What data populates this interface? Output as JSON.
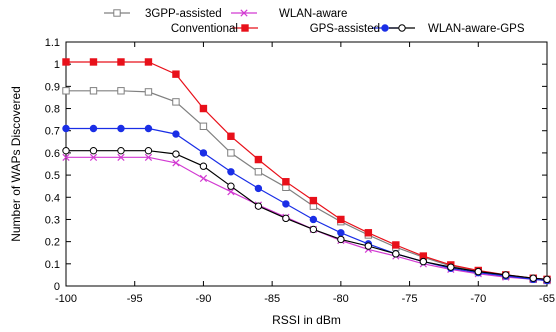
{
  "chart_data": {
    "type": "line",
    "title": "",
    "xlabel": "RSSI in dBm",
    "ylabel": "Number of WAPs Discovered",
    "xlim": [
      -100,
      -65
    ],
    "ylim": [
      0,
      1.1
    ],
    "xticks": [
      -100,
      -95,
      -90,
      -85,
      -80,
      -75,
      -70,
      -65
    ],
    "xtick_labels": [
      "-100",
      "-95",
      "-90",
      "-85",
      "-80",
      "-75",
      "-70",
      "-65"
    ],
    "yticks": [
      0,
      0.1,
      0.2,
      0.3,
      0.4,
      0.5,
      0.6,
      0.7,
      0.8,
      0.9,
      1,
      1.1
    ],
    "ytick_labels": [
      "0",
      "0.1",
      "0.2",
      "0.3",
      "0.4",
      "0.5",
      "0.6",
      "0.7",
      "0.8",
      "0.9",
      "1",
      "1.1"
    ],
    "grid": false,
    "legend_position": "top",
    "x": [
      -100,
      -98,
      -96,
      -94,
      -92,
      -90,
      -88,
      -86,
      -84,
      -82,
      -80,
      -78,
      -76,
      -74,
      -72,
      -70,
      -68,
      -66,
      -65
    ],
    "series": [
      {
        "name": "3GPP-assisted",
        "color": "#808080",
        "marker": "open-square",
        "values": [
          0.88,
          0.88,
          0.88,
          0.875,
          0.83,
          0.72,
          0.6,
          0.515,
          0.445,
          0.36,
          0.29,
          0.23,
          0.175,
          0.13,
          0.09,
          0.065,
          0.045,
          0.03,
          0.025
        ]
      },
      {
        "name": "Conventional",
        "color": "#e8101a",
        "marker": "filled-square",
        "values": [
          1.01,
          1.01,
          1.01,
          1.01,
          0.955,
          0.8,
          0.675,
          0.57,
          0.47,
          0.385,
          0.3,
          0.24,
          0.185,
          0.135,
          0.095,
          0.07,
          0.05,
          0.035,
          0.03
        ]
      },
      {
        "name": "WLAN-aware",
        "color": "#d23ad2",
        "marker": "x",
        "values": [
          0.58,
          0.58,
          0.58,
          0.58,
          0.555,
          0.485,
          0.425,
          0.365,
          0.31,
          0.255,
          0.205,
          0.165,
          0.135,
          0.1,
          0.075,
          0.055,
          0.04,
          0.03,
          0.025
        ]
      },
      {
        "name": "GPS-assisted",
        "color": "#1a2ee6",
        "marker": "filled-circle",
        "values": [
          0.71,
          0.71,
          0.71,
          0.71,
          0.685,
          0.6,
          0.515,
          0.44,
          0.37,
          0.3,
          0.24,
          0.19,
          0.145,
          0.11,
          0.08,
          0.06,
          0.045,
          0.03,
          0.025
        ]
      },
      {
        "name": "WLAN-aware-GPS",
        "color": "#000000",
        "marker": "open-circle",
        "values": [
          0.61,
          0.61,
          0.61,
          0.61,
          0.595,
          0.54,
          0.45,
          0.36,
          0.305,
          0.255,
          0.21,
          0.18,
          0.145,
          0.11,
          0.085,
          0.065,
          0.05,
          0.035,
          0.03
        ]
      }
    ]
  }
}
